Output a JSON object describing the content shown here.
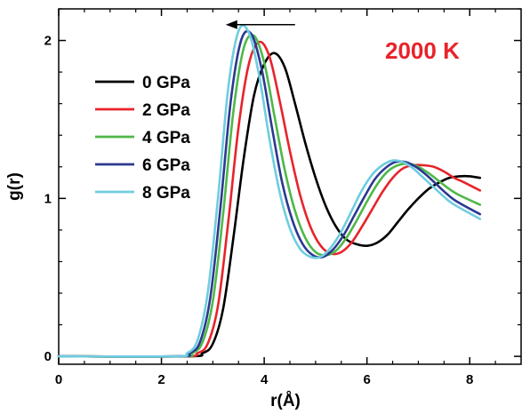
{
  "chart_data": {
    "type": "line",
    "title": "",
    "xlabel": "r(Å)",
    "ylabel": "g(r)",
    "xlim": [
      0,
      9
    ],
    "ylim": [
      -0.05,
      2.2
    ],
    "xticks": [
      0,
      2,
      4,
      6,
      8
    ],
    "yticks": [
      0,
      1,
      2
    ],
    "grid": false,
    "legend_position": "top-left",
    "annotation": {
      "text": "2000 K",
      "color": "#e8232a"
    },
    "arrow": {
      "from": [
        4.6,
        2.1
      ],
      "to": [
        3.25,
        2.1
      ],
      "direction": "left"
    },
    "series": [
      {
        "name": "0 GPa",
        "color": "#000000",
        "x": [
          0,
          2.5,
          2.8,
          3.0,
          3.2,
          3.4,
          3.6,
          3.8,
          4.0,
          4.2,
          4.4,
          4.6,
          4.8,
          5.0,
          5.2,
          5.4,
          5.6,
          5.8,
          6.0,
          6.2,
          6.4,
          6.6,
          6.8,
          7.0,
          7.2,
          7.4,
          7.6,
          7.8,
          8.0,
          8.2
        ],
        "y": [
          0,
          0,
          0.02,
          0.08,
          0.3,
          0.75,
          1.25,
          1.65,
          1.85,
          1.92,
          1.83,
          1.6,
          1.35,
          1.13,
          0.95,
          0.82,
          0.74,
          0.71,
          0.7,
          0.72,
          0.77,
          0.85,
          0.93,
          1.0,
          1.06,
          1.1,
          1.13,
          1.14,
          1.14,
          1.13
        ]
      },
      {
        "name": "2 GPa",
        "color": "#e8232a",
        "x": [
          0,
          2.4,
          2.7,
          2.9,
          3.1,
          3.3,
          3.5,
          3.7,
          3.9,
          4.1,
          4.3,
          4.5,
          4.7,
          4.9,
          5.1,
          5.3,
          5.5,
          5.7,
          5.9,
          6.1,
          6.3,
          6.5,
          6.7,
          6.9,
          7.1,
          7.3,
          7.5,
          7.7,
          7.9,
          8.2
        ],
        "y": [
          0,
          0,
          0.02,
          0.08,
          0.32,
          0.85,
          1.45,
          1.85,
          1.99,
          1.9,
          1.62,
          1.3,
          1.02,
          0.82,
          0.7,
          0.65,
          0.66,
          0.72,
          0.82,
          0.93,
          1.04,
          1.13,
          1.19,
          1.21,
          1.21,
          1.2,
          1.17,
          1.13,
          1.1,
          1.05
        ]
      },
      {
        "name": "4 GPa",
        "color": "#4fb848",
        "x": [
          0,
          2.35,
          2.6,
          2.8,
          3.0,
          3.2,
          3.4,
          3.6,
          3.8,
          4.0,
          4.2,
          4.4,
          4.6,
          4.8,
          5.0,
          5.2,
          5.4,
          5.6,
          5.8,
          6.0,
          6.2,
          6.4,
          6.6,
          6.8,
          7.0,
          7.2,
          7.4,
          7.6,
          7.8,
          8.2
        ],
        "y": [
          0,
          0,
          0.02,
          0.09,
          0.35,
          0.9,
          1.55,
          1.95,
          2.03,
          1.86,
          1.52,
          1.18,
          0.92,
          0.75,
          0.66,
          0.64,
          0.67,
          0.75,
          0.86,
          0.98,
          1.09,
          1.17,
          1.21,
          1.22,
          1.2,
          1.16,
          1.11,
          1.06,
          1.02,
          0.96
        ]
      },
      {
        "name": "6 GPa",
        "color": "#2b3990",
        "x": [
          0,
          2.3,
          2.55,
          2.75,
          2.95,
          3.15,
          3.35,
          3.55,
          3.75,
          3.95,
          4.15,
          4.35,
          4.55,
          4.75,
          4.95,
          5.15,
          5.35,
          5.55,
          5.75,
          5.95,
          6.15,
          6.35,
          6.55,
          6.75,
          6.95,
          7.15,
          7.35,
          7.55,
          7.75,
          8.2
        ],
        "y": [
          0,
          0,
          0.02,
          0.09,
          0.37,
          0.95,
          1.62,
          2.0,
          2.04,
          1.82,
          1.45,
          1.1,
          0.86,
          0.71,
          0.64,
          0.63,
          0.68,
          0.77,
          0.89,
          1.01,
          1.12,
          1.19,
          1.23,
          1.23,
          1.2,
          1.15,
          1.09,
          1.03,
          0.98,
          0.9
        ]
      },
      {
        "name": "8 GPa",
        "color": "#6fcde0",
        "x": [
          0,
          2.25,
          2.5,
          2.7,
          2.9,
          3.1,
          3.3,
          3.5,
          3.7,
          3.9,
          4.1,
          4.3,
          4.5,
          4.7,
          4.9,
          5.1,
          5.3,
          5.5,
          5.7,
          5.9,
          6.1,
          6.3,
          6.5,
          6.7,
          6.9,
          7.1,
          7.3,
          7.5,
          7.7,
          8.2
        ],
        "y": [
          0,
          0,
          0.02,
          0.1,
          0.4,
          1.0,
          1.7,
          2.06,
          2.05,
          1.78,
          1.38,
          1.04,
          0.81,
          0.68,
          0.63,
          0.63,
          0.69,
          0.79,
          0.92,
          1.05,
          1.15,
          1.21,
          1.24,
          1.23,
          1.19,
          1.13,
          1.07,
          1.01,
          0.96,
          0.87
        ]
      }
    ]
  }
}
